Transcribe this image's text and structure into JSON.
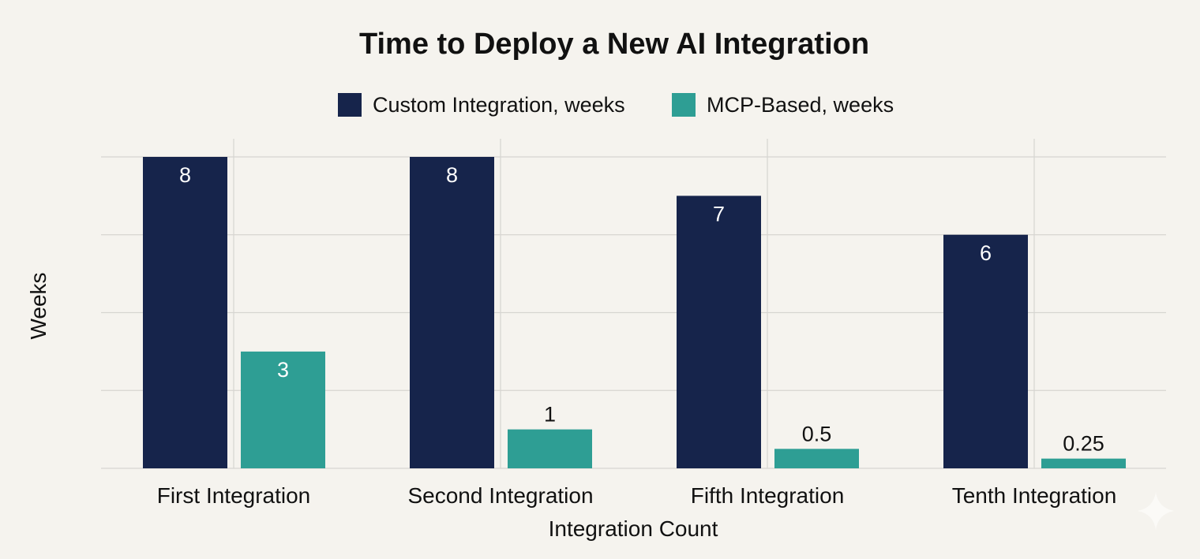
{
  "chart_data": {
    "type": "bar",
    "title": "Time to Deploy a New AI Integration",
    "xlabel": "Integration Count",
    "ylabel": "Weeks",
    "categories": [
      "First Integration",
      "Second Integration",
      "Fifth Integration",
      "Tenth Integration"
    ],
    "series": [
      {
        "name": "Custom Integration, weeks",
        "values": [
          8,
          8,
          7,
          6
        ],
        "data_labels": [
          "8",
          "8",
          "7",
          "6"
        ],
        "color": "#16244b",
        "label_position": "inside"
      },
      {
        "name": "MCP-Based, weeks",
        "values": [
          3,
          1,
          0.5,
          0.25
        ],
        "data_labels": [
          "3",
          "1",
          "0.5",
          "0.25"
        ],
        "color": "#2e9e94",
        "label_position": "mixed"
      }
    ],
    "ylim": [
      0,
      8
    ],
    "y_gridlines": [
      0,
      2,
      4,
      6,
      8
    ],
    "y_tick_labels_shown": false,
    "grid": true,
    "legend": "top-center",
    "background": "#f5f3ee"
  },
  "watermark": {
    "icon": "sparkle-icon"
  }
}
